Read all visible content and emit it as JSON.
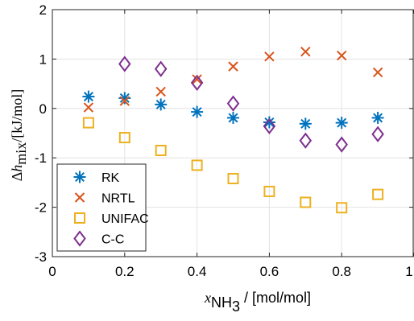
{
  "chart_data": {
    "type": "scatter",
    "xlabel": {
      "main": "x",
      "sub": "NH",
      "subsub": "3",
      "unit": " / [mol/mol]"
    },
    "ylabel": {
      "prefix": "Δ",
      "main": "h",
      "sub": "mix",
      "unit": "/[kJ/mol]"
    },
    "xlim": [
      0,
      1
    ],
    "ylim": [
      -3,
      2
    ],
    "xticks": [
      0,
      0.2,
      0.4,
      0.6,
      0.8,
      1
    ],
    "yticks": [
      -3,
      -2,
      -1,
      0,
      1,
      2
    ],
    "xtick_labels": [
      "0",
      "0.2",
      "0.4",
      "0.6",
      "0.8",
      "1"
    ],
    "ytick_labels": [
      "-3",
      "-2",
      "-1",
      "0",
      "1",
      "2"
    ],
    "grid": true,
    "legend_position": "bottom-left",
    "x": [
      0.1,
      0.2,
      0.3,
      0.4,
      0.5,
      0.6,
      0.7,
      0.8,
      0.9
    ],
    "series": [
      {
        "name": "RK",
        "marker": "asterisk",
        "color": "#0072BD",
        "values": [
          0.24,
          0.21,
          0.08,
          -0.07,
          -0.19,
          -0.28,
          -0.31,
          -0.29,
          -0.19
        ]
      },
      {
        "name": "NRTL",
        "marker": "x",
        "color": "#D95319",
        "values": [
          0.02,
          0.15,
          0.34,
          0.59,
          0.85,
          1.05,
          1.15,
          1.07,
          0.73
        ]
      },
      {
        "name": "UNIFAC",
        "marker": "square",
        "color": "#EDB120",
        "values": [
          -0.29,
          -0.59,
          -0.85,
          -1.15,
          -1.42,
          -1.68,
          -1.9,
          -2.01,
          -1.74
        ]
      },
      {
        "name": "C-C",
        "marker": "diamond",
        "color": "#7E2F8E",
        "values": [
          null,
          0.9,
          0.8,
          0.52,
          0.1,
          -0.36,
          -0.65,
          -0.73,
          -0.52
        ]
      }
    ]
  }
}
